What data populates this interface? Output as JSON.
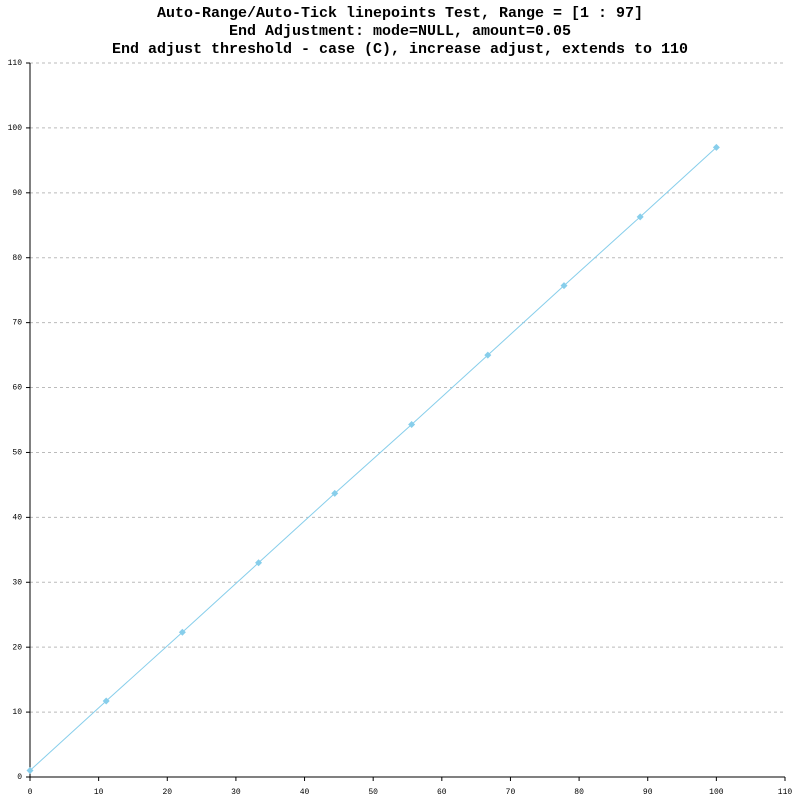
{
  "chart_data": {
    "type": "line",
    "title": "Auto-Range/Auto-Tick linepoints Test, Range = [1 : 97]",
    "subtitles": [
      "End Adjustment: mode=NULL, amount=0.05",
      "End adjust threshold - case (C), increase adjust, extends to 110"
    ],
    "x": [
      0,
      11.1,
      22.2,
      33.3,
      44.4,
      55.6,
      66.7,
      77.8,
      88.9,
      100
    ],
    "series": [
      {
        "color": "#87ceeb",
        "values": [
          1,
          11.7,
          22.3,
          33,
          43.7,
          54.3,
          65,
          75.7,
          86.3,
          97
        ]
      }
    ],
    "xlim": [
      0,
      110
    ],
    "xticks": [
      0,
      10,
      20,
      30,
      40,
      50,
      60,
      70,
      80,
      90,
      100,
      110
    ],
    "ylim": [
      0,
      110
    ],
    "yticks": [
      0,
      10,
      20,
      30,
      40,
      50,
      60,
      70,
      80,
      90,
      100,
      110
    ],
    "grid": true
  }
}
